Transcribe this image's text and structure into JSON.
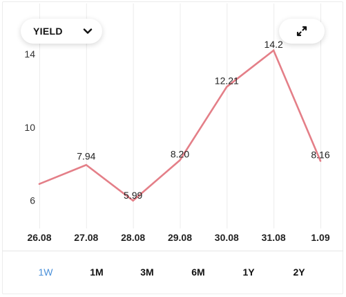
{
  "dropdown": {
    "label": "YIELD",
    "icon": "chevron-down-icon"
  },
  "expand_button": {
    "icon": "expand-icon"
  },
  "chart_data": {
    "type": "line",
    "categories": [
      "26.08",
      "27.08",
      "28.08",
      "29.08",
      "30.08",
      "31.08",
      "1.09"
    ],
    "series": [
      {
        "values": [
          6.9,
          7.94,
          5.99,
          8.2,
          12.21,
          14.2,
          8.16
        ]
      }
    ],
    "data_labels": [
      "",
      "7.94",
      "5.99",
      "8.20",
      "12.21",
      "14.2",
      "8.16"
    ],
    "y_ticks": [
      6,
      10,
      14
    ],
    "y_tick_labels": [
      "6",
      "10",
      "14"
    ],
    "ylim": [
      3.9,
      16.2
    ],
    "grid": "vertical",
    "line_color": "#e47f88"
  },
  "tabs": [
    {
      "label": "1W",
      "active": true
    },
    {
      "label": "1M",
      "active": false
    },
    {
      "label": "3M",
      "active": false
    },
    {
      "label": "6M",
      "active": false
    },
    {
      "label": "1Y",
      "active": false
    },
    {
      "label": "2Y",
      "active": false
    }
  ],
  "colors": {
    "accent": "#4a90d9",
    "line": "#e47f88",
    "grid": "#ececec"
  }
}
